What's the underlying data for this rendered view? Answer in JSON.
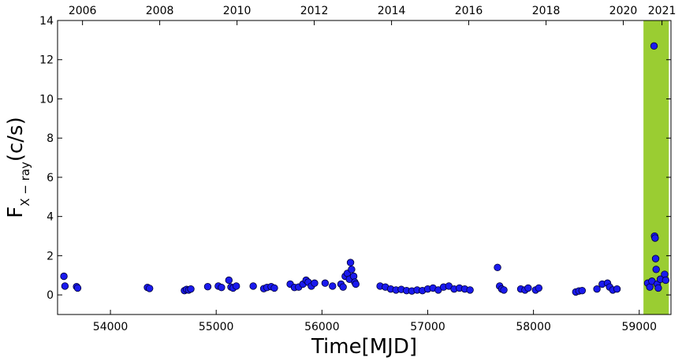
{
  "chart_data": {
    "type": "scatter",
    "title": "",
    "xlabel": "Time[MJD]",
    "ylabel": {
      "main": "F",
      "sub": "X − ray",
      "suffix": "(c/s)"
    },
    "xlim": [
      53500,
      59300
    ],
    "ylim": [
      -1,
      14
    ],
    "x_ticks": [
      54000,
      55000,
      56000,
      57000,
      58000,
      59000
    ],
    "y_ticks": [
      0,
      2,
      4,
      6,
      8,
      10,
      12,
      14
    ],
    "top_axis": {
      "label": "",
      "ticks": [
        {
          "mjd": 53736,
          "label": "2006"
        },
        {
          "mjd": 54466,
          "label": "2008"
        },
        {
          "mjd": 55197,
          "label": "2010"
        },
        {
          "mjd": 55927,
          "label": "2012"
        },
        {
          "mjd": 56658,
          "label": "2014"
        },
        {
          "mjd": 57388,
          "label": "2016"
        },
        {
          "mjd": 58119,
          "label": "2018"
        },
        {
          "mjd": 58849,
          "label": "2020"
        },
        {
          "mjd": 59215,
          "label": "2021"
        }
      ]
    },
    "highlight_band": {
      "x": [
        59040,
        59280
      ],
      "color": "#9acd32"
    },
    "marker_color": "#1a1aee",
    "marker_edge": "#000033",
    "grid": false,
    "series": [
      {
        "points": [
          [
            53560,
            0.95
          ],
          [
            53570,
            0.45
          ],
          [
            53680,
            0.42
          ],
          [
            53690,
            0.35
          ],
          [
            54350,
            0.38
          ],
          [
            54370,
            0.33
          ],
          [
            54700,
            0.22
          ],
          [
            54720,
            0.28
          ],
          [
            54740,
            0.25
          ],
          [
            54760,
            0.3
          ],
          [
            54920,
            0.42
          ],
          [
            55020,
            0.45
          ],
          [
            55050,
            0.38
          ],
          [
            55120,
            0.75
          ],
          [
            55140,
            0.4
          ],
          [
            55160,
            0.35
          ],
          [
            55190,
            0.45
          ],
          [
            55350,
            0.45
          ],
          [
            55450,
            0.32
          ],
          [
            55480,
            0.38
          ],
          [
            55520,
            0.42
          ],
          [
            55550,
            0.35
          ],
          [
            55700,
            0.55
          ],
          [
            55740,
            0.38
          ],
          [
            55780,
            0.4
          ],
          [
            55820,
            0.55
          ],
          [
            55850,
            0.75
          ],
          [
            55870,
            0.65
          ],
          [
            55900,
            0.45
          ],
          [
            55930,
            0.6
          ],
          [
            56030,
            0.6
          ],
          [
            56100,
            0.45
          ],
          [
            56180,
            0.55
          ],
          [
            56200,
            0.4
          ],
          [
            56220,
            0.95
          ],
          [
            56240,
            1.1
          ],
          [
            56260,
            0.8
          ],
          [
            56270,
            1.65
          ],
          [
            56280,
            1.3
          ],
          [
            56300,
            0.95
          ],
          [
            56310,
            0.65
          ],
          [
            56320,
            0.55
          ],
          [
            56550,
            0.45
          ],
          [
            56600,
            0.4
          ],
          [
            56650,
            0.3
          ],
          [
            56700,
            0.25
          ],
          [
            56750,
            0.28
          ],
          [
            56800,
            0.22
          ],
          [
            56850,
            0.2
          ],
          [
            56900,
            0.25
          ],
          [
            56950,
            0.22
          ],
          [
            57000,
            0.3
          ],
          [
            57050,
            0.35
          ],
          [
            57100,
            0.25
          ],
          [
            57150,
            0.4
          ],
          [
            57200,
            0.45
          ],
          [
            57250,
            0.3
          ],
          [
            57300,
            0.35
          ],
          [
            57350,
            0.3
          ],
          [
            57400,
            0.25
          ],
          [
            57660,
            1.4
          ],
          [
            57680,
            0.45
          ],
          [
            57700,
            0.3
          ],
          [
            57720,
            0.25
          ],
          [
            57880,
            0.3
          ],
          [
            57920,
            0.25
          ],
          [
            57950,
            0.35
          ],
          [
            58020,
            0.25
          ],
          [
            58050,
            0.35
          ],
          [
            58400,
            0.15
          ],
          [
            58430,
            0.2
          ],
          [
            58460,
            0.22
          ],
          [
            58600,
            0.3
          ],
          [
            58650,
            0.55
          ],
          [
            58700,
            0.6
          ],
          [
            58720,
            0.4
          ],
          [
            58750,
            0.25
          ],
          [
            58790,
            0.3
          ],
          [
            59080,
            0.6
          ],
          [
            59100,
            0.4
          ],
          [
            59120,
            0.7
          ],
          [
            59140,
            12.7
          ],
          [
            59145,
            3.0
          ],
          [
            59150,
            2.9
          ],
          [
            59155,
            1.85
          ],
          [
            59160,
            1.3
          ],
          [
            59170,
            0.55
          ],
          [
            59180,
            0.35
          ],
          [
            59200,
            0.8
          ],
          [
            59240,
            1.05
          ],
          [
            59250,
            0.75
          ]
        ]
      }
    ]
  }
}
